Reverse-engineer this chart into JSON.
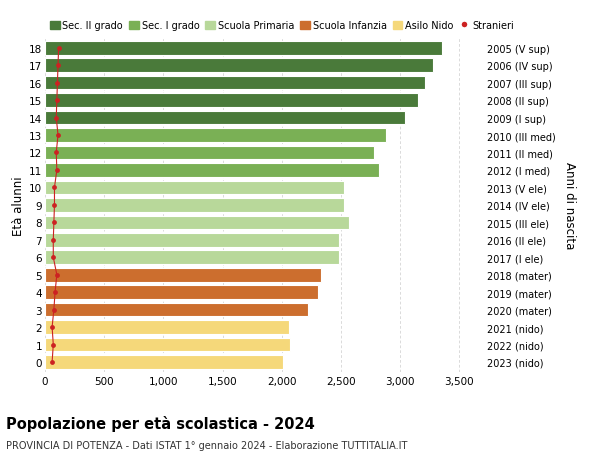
{
  "ages": [
    18,
    17,
    16,
    15,
    14,
    13,
    12,
    11,
    10,
    9,
    8,
    7,
    6,
    5,
    4,
    3,
    2,
    1,
    0
  ],
  "years": [
    "2005 (V sup)",
    "2006 (IV sup)",
    "2007 (III sup)",
    "2008 (II sup)",
    "2009 (I sup)",
    "2010 (III med)",
    "2011 (II med)",
    "2012 (I med)",
    "2013 (V ele)",
    "2014 (IV ele)",
    "2015 (III ele)",
    "2016 (II ele)",
    "2017 (I ele)",
    "2018 (mater)",
    "2019 (mater)",
    "2020 (mater)",
    "2021 (nido)",
    "2022 (nido)",
    "2023 (nido)"
  ],
  "values": [
    3350,
    3280,
    3210,
    3150,
    3040,
    2880,
    2780,
    2820,
    2530,
    2530,
    2570,
    2480,
    2480,
    2330,
    2310,
    2220,
    2060,
    2070,
    2010
  ],
  "stranieri": [
    115,
    110,
    105,
    100,
    95,
    110,
    95,
    100,
    80,
    80,
    75,
    70,
    70,
    100,
    85,
    75,
    60,
    70,
    60
  ],
  "bar_colors": [
    "#4a7a3a",
    "#4a7a3a",
    "#4a7a3a",
    "#4a7a3a",
    "#4a7a3a",
    "#7ab055",
    "#7ab055",
    "#7ab055",
    "#b8d89a",
    "#b8d89a",
    "#b8d89a",
    "#b8d89a",
    "#b8d89a",
    "#cc6e2e",
    "#cc6e2e",
    "#cc6e2e",
    "#f5d87a",
    "#f5d87a",
    "#f5d87a"
  ],
  "legend_labels": [
    "Sec. II grado",
    "Sec. I grado",
    "Scuola Primaria",
    "Scuola Infanzia",
    "Asilo Nido",
    "Stranieri"
  ],
  "legend_colors": [
    "#4a7a3a",
    "#7ab055",
    "#b8d89a",
    "#cc6e2e",
    "#f5d87a",
    "#cc2222"
  ],
  "xlabel_ticks": [
    0,
    500,
    1000,
    1500,
    2000,
    2500,
    3000,
    3500
  ],
  "xlabel_labels": [
    "0",
    "500",
    "1,000",
    "1,500",
    "2,000",
    "2,500",
    "3,000",
    "3,500"
  ],
  "ylabel_left": "Età alunni",
  "ylabel_right": "Anni di nascita",
  "title": "Popolazione per età scolastica - 2024",
  "subtitle": "PROVINCIA DI POTENZA - Dati ISTAT 1° gennaio 2024 - Elaborazione TUTTITALIA.IT",
  "xlim": [
    0,
    3700
  ],
  "ylim": [
    -0.55,
    18.55
  ],
  "background_color": "#ffffff",
  "grid_color": "#cccccc",
  "stranieri_color": "#cc2222",
  "bar_edge_color": "#ffffff",
  "bar_height": 0.78
}
